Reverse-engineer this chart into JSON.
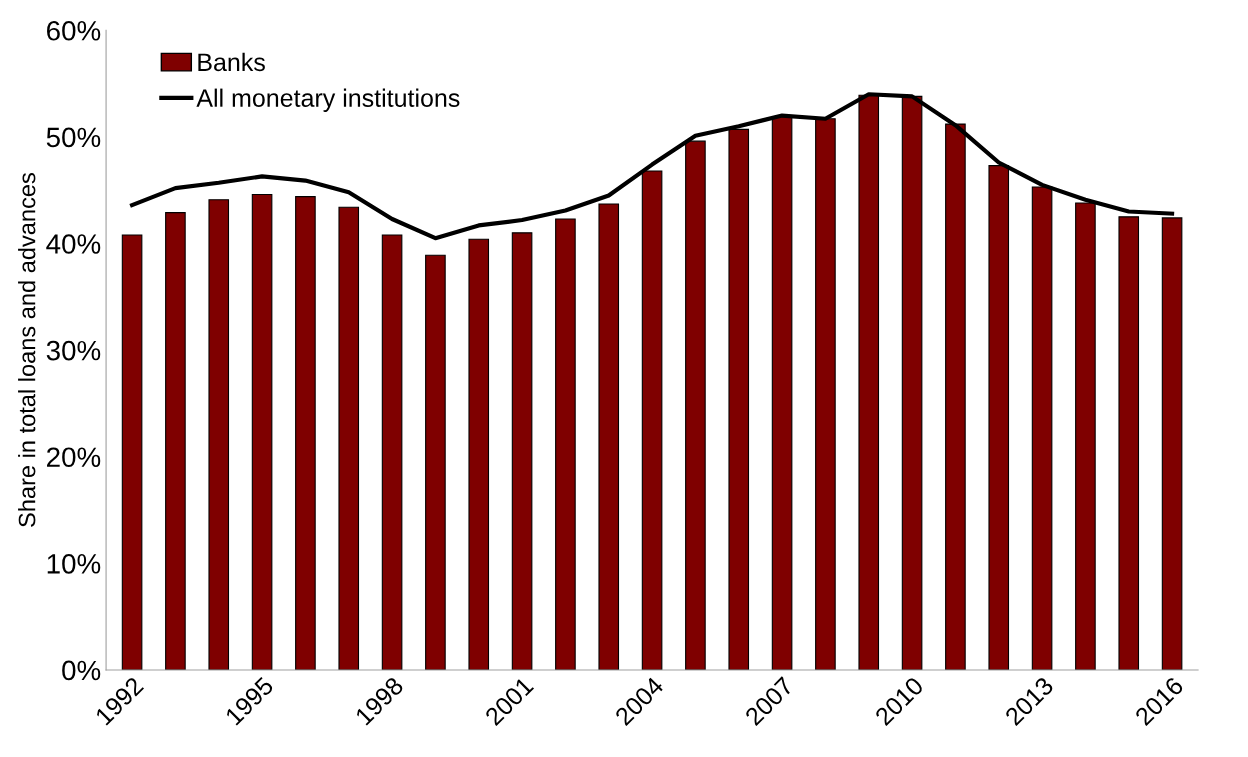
{
  "chart_data": {
    "type": "bar",
    "ylabel": "Share in total loans and advances",
    "categories": [
      "1992",
      null,
      null,
      "1995",
      null,
      null,
      "1998",
      null,
      null,
      "2001",
      null,
      null,
      "2004",
      null,
      null,
      "2007",
      null,
      null,
      "2010",
      null,
      null,
      "2013",
      null,
      null,
      "2016"
    ],
    "series": [
      {
        "name": "Banks",
        "color": "#7f0000",
        "values": [
          40.8,
          42.9,
          44.1,
          44.6,
          44.4,
          43.4,
          40.8,
          38.9,
          40.4,
          41.0,
          42.3,
          43.7,
          46.8,
          49.6,
          50.7,
          51.9,
          51.7,
          53.9,
          53.8,
          51.2,
          47.3,
          45.3,
          43.8,
          42.5,
          42.4
        ]
      },
      {
        "name": "All monetary institutions",
        "type": "line",
        "color": "#000000",
        "values": [
          43.6,
          45.2,
          45.7,
          46.3,
          45.9,
          44.8,
          42.3,
          40.5,
          41.7,
          42.2,
          43.1,
          44.5,
          47.4,
          50.1,
          51.0,
          52.0,
          51.7,
          54.0,
          53.8,
          51.1,
          47.6,
          45.5,
          44.1,
          43.0,
          42.8
        ]
      }
    ],
    "ylim": [
      0,
      60
    ],
    "yticks": [
      {
        "value": 0,
        "label": "0%"
      },
      {
        "value": 10,
        "label": "10%"
      },
      {
        "value": 20,
        "label": "20%"
      },
      {
        "value": 30,
        "label": "30%"
      },
      {
        "value": 40,
        "label": "40%"
      },
      {
        "value": 50,
        "label": "50%"
      },
      {
        "value": 60,
        "label": "60%"
      }
    ],
    "grid": false,
    "legend": "top left",
    "marker": "none",
    "line_style": "solid"
  }
}
